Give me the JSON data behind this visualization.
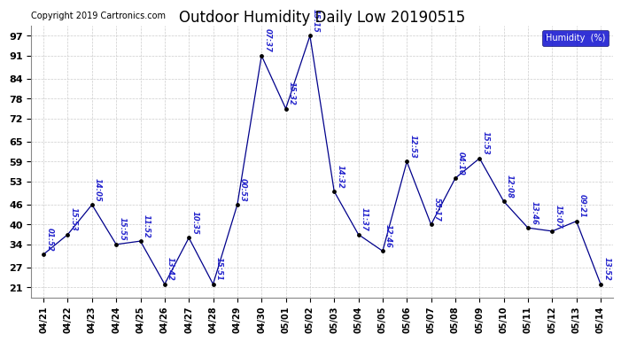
{
  "title": "Outdoor Humidity Daily Low 20190515",
  "copyright": "Copyright 2019 Cartronics.com",
  "legend_label": "Humidity  (%)",
  "legend_bg": "#0000cc",
  "legend_text_color": "#ffffff",
  "line_color": "#00008B",
  "marker_color": "#000000",
  "annotation_color": "#2222cc",
  "bg_color": "#ffffff",
  "grid_color": "#cccccc",
  "yticks": [
    21,
    27,
    34,
    40,
    46,
    53,
    59,
    65,
    72,
    78,
    84,
    91,
    97
  ],
  "ylim": [
    18,
    100
  ],
  "xlim": [
    -0.5,
    23.5
  ],
  "dates": [
    "04/21",
    "04/22",
    "04/23",
    "04/24",
    "04/25",
    "04/26",
    "04/27",
    "04/28",
    "04/29",
    "04/30",
    "05/01",
    "05/02",
    "05/03",
    "05/04",
    "05/05",
    "05/06",
    "05/07",
    "05/08",
    "05/09",
    "05/10",
    "05/11",
    "05/12",
    "05/13",
    "05/14"
  ],
  "values": [
    31,
    37,
    46,
    34,
    35,
    22,
    36,
    22,
    46,
    91,
    75,
    97,
    50,
    37,
    32,
    59,
    40,
    54,
    60,
    47,
    39,
    38,
    41,
    22
  ],
  "annotations": [
    "01:52",
    "15:53",
    "14:05",
    "15:55",
    "11:52",
    "13:42",
    "10:35",
    "15:51",
    "00:53",
    "07:37",
    "15:32",
    "15:15",
    "14:32",
    "11:37",
    "12:46",
    "12:53",
    "55:17",
    "04:10",
    "15:53",
    "12:08",
    "13:46",
    "15:07",
    "09:21",
    "13:52"
  ],
  "title_fontsize": 12,
  "axis_label_fontsize": 7,
  "annotation_fontsize": 6,
  "copyright_fontsize": 7,
  "ytick_fontsize": 8,
  "legend_fontsize": 7
}
